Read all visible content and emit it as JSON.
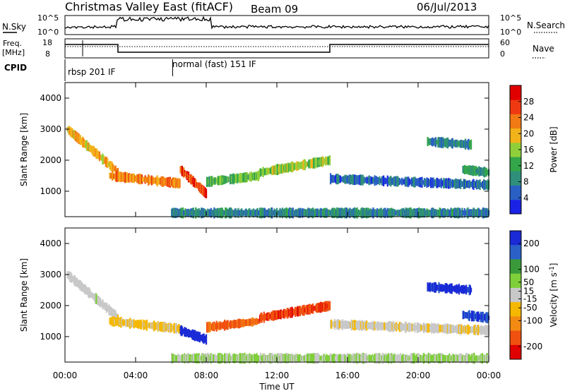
{
  "header": {
    "station": "Christmas Valley East (fitACF)",
    "beam": "Beam 09",
    "date": "06/Jul/2013"
  },
  "summary_panels": {
    "nsky": {
      "label": "N.Sky",
      "ticks": [
        "10^5",
        "10^0"
      ]
    },
    "nsearch": {
      "label": "N.Search",
      "ticks": [
        "10^5",
        "10^0"
      ]
    },
    "freq": {
      "label_top": "Freq.",
      "label_bottom": "[MHz]",
      "ticks": [
        "18",
        "8"
      ]
    },
    "nave": {
      "label": "Nave",
      "ticks": [
        "60",
        "0"
      ]
    },
    "cpid": {
      "label": "CPID",
      "segments": [
        {
          "name": "rbsp 201 IF",
          "start_hour": 0
        },
        {
          "name": "normal (fast) 151 IF",
          "start_hour": 6.1
        }
      ]
    }
  },
  "colors": {
    "power": [
      "#1a22e6",
      "#2a5fc4",
      "#2f8f7a",
      "#33a64a",
      "#8fcf3a",
      "#f2b21a",
      "#f27a14",
      "#ee3a12",
      "#e00000"
    ],
    "velocity": [
      "#1a2ad6",
      "#2a60c8",
      "#3a9a3a",
      "#7fcf3a",
      "#c8c8c8",
      "#f5b800",
      "#f28a14",
      "#f05010",
      "#e00000"
    ]
  },
  "chart_data": [
    {
      "type": "heatmap",
      "title": "",
      "xlabel": "",
      "ylabel": "Slant Range [km]",
      "xlim": [
        0,
        24
      ],
      "ylim": [
        180,
        4500
      ],
      "x_ticks": [
        "00:00",
        "04:00",
        "08:00",
        "12:00",
        "16:00",
        "20:00",
        "00:00"
      ],
      "y_ticks": [
        1000,
        2000,
        3000,
        4000
      ],
      "colorbar": {
        "label": "Power [dB]",
        "ticks": [
          4,
          8,
          12,
          16,
          20,
          24,
          28
        ],
        "range": [
          0,
          32
        ]
      },
      "regions": [
        {
          "x": [
            0.1,
            3.0
          ],
          "y_start": 3000,
          "y_end": 1600,
          "value": 20
        },
        {
          "x": [
            2.5,
            6.5
          ],
          "y_start": 1500,
          "y_end": 1250,
          "value": 22
        },
        {
          "x": [
            6.5,
            8.0
          ],
          "y_start": 1700,
          "y_end": 900,
          "value": 27
        },
        {
          "x": [
            8.0,
            11.0
          ],
          "y_start": 1300,
          "y_end": 1500,
          "value": 14
        },
        {
          "x": [
            11.0,
            15.0
          ],
          "y_start": 1600,
          "y_end": 2000,
          "value": 16
        },
        {
          "x": [
            15.0,
            24.0
          ],
          "y_start": 1400,
          "y_end": 1200,
          "value": 6
        },
        {
          "x": [
            20.5,
            23.0
          ],
          "y_start": 2600,
          "y_end": 2500,
          "value": 8
        },
        {
          "x": [
            22.5,
            24.0
          ],
          "y_start": 1700,
          "y_end": 1600,
          "value": 10
        },
        {
          "x": [
            6.0,
            24.0
          ],
          "y_start": 300,
          "y_end": 300,
          "value": 8
        }
      ]
    },
    {
      "type": "heatmap",
      "title": "",
      "xlabel": "Time UT",
      "ylabel": "Slant Range [km]",
      "xlim": [
        0,
        24
      ],
      "ylim": [
        180,
        4500
      ],
      "x_ticks": [
        "00:00",
        "04:00",
        "08:00",
        "12:00",
        "16:00",
        "20:00",
        "00:00"
      ],
      "y_ticks": [
        1000,
        2000,
        3000,
        4000
      ],
      "colorbar": {
        "label": "Velocity [m s^-1]",
        "ticks": [
          200,
          100,
          50,
          15,
          -15,
          -50,
          -100,
          -200
        ],
        "range": [
          -250,
          250
        ]
      },
      "regions": [
        {
          "x": [
            0.1,
            3.0
          ],
          "y_start": 3000,
          "y_end": 1600,
          "value": 0
        },
        {
          "x": [
            2.5,
            6.5
          ],
          "y_start": 1500,
          "y_end": 1250,
          "value": -40
        },
        {
          "x": [
            6.5,
            8.0
          ],
          "y_start": 1200,
          "y_end": 900,
          "value": 220
        },
        {
          "x": [
            8.0,
            11.0
          ],
          "y_start": 1300,
          "y_end": 1500,
          "value": -150
        },
        {
          "x": [
            11.0,
            15.0
          ],
          "y_start": 1600,
          "y_end": 2000,
          "value": -180
        },
        {
          "x": [
            15.0,
            24.0
          ],
          "y_start": 1400,
          "y_end": 1200,
          "value": -10
        },
        {
          "x": [
            20.5,
            23.0
          ],
          "y_start": 2600,
          "y_end": 2500,
          "value": 220
        },
        {
          "x": [
            22.5,
            24.0
          ],
          "y_start": 1700,
          "y_end": 1600,
          "value": 200
        },
        {
          "x": [
            6.0,
            24.0
          ],
          "y_start": 300,
          "y_end": 300,
          "value": 30
        }
      ]
    }
  ]
}
